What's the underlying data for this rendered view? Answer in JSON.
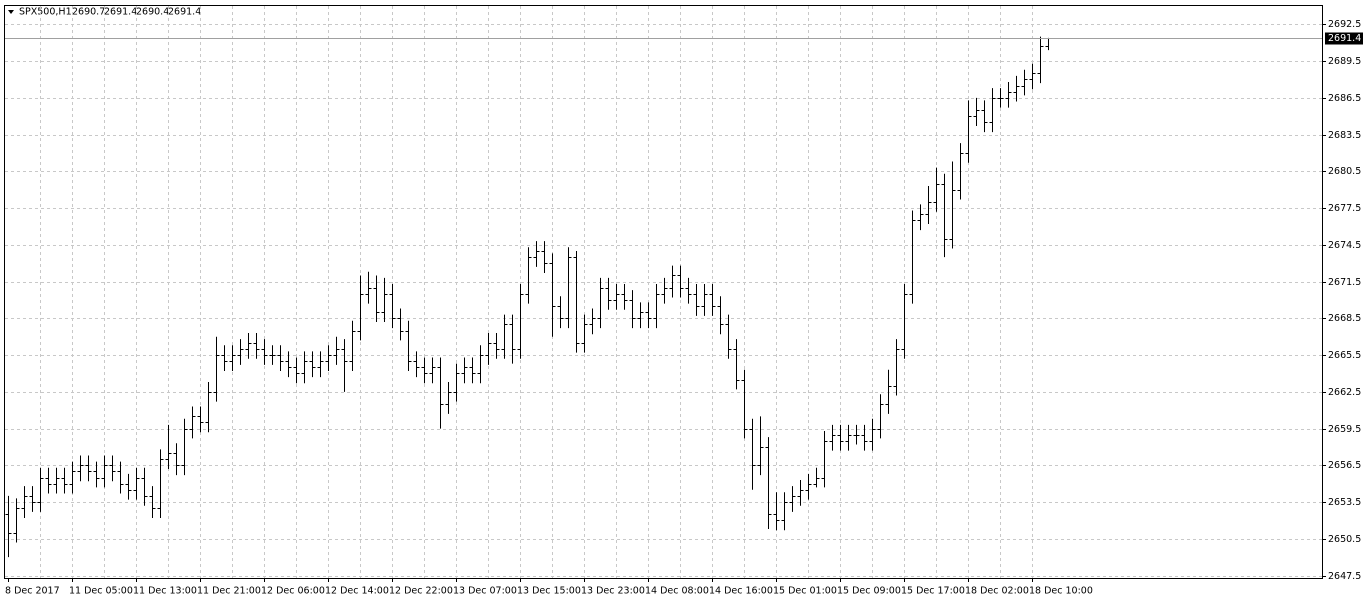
{
  "chart_data": {
    "type": "ohlc",
    "title": "SPX500,H1",
    "color": "#000000",
    "grid": true,
    "categories": [
      "8 Dec 2017",
      null,
      null,
      null,
      null,
      null,
      null,
      null,
      "11 Dec 05:00",
      null,
      null,
      null,
      null,
      null,
      null,
      null,
      "11 Dec 13:00",
      null,
      null,
      null,
      null,
      null,
      null,
      null,
      "11 Dec 21:00",
      null,
      null,
      null,
      null,
      null,
      null,
      null,
      "12 Dec 06:00",
      null,
      null,
      null,
      null,
      null,
      null,
      null,
      "12 Dec 14:00",
      null,
      null,
      null,
      null,
      null,
      null,
      null,
      "12 Dec 22:00",
      null,
      null,
      null,
      null,
      null,
      null,
      null,
      "13 Dec 07:00",
      null,
      null,
      null,
      null,
      null,
      null,
      null,
      "13 Dec 15:00",
      null,
      null,
      null,
      null,
      null,
      null,
      null,
      "13 Dec 23:00",
      null,
      null,
      null,
      null,
      null,
      null,
      null,
      "14 Dec 08:00",
      null,
      null,
      null,
      null,
      null,
      null,
      null,
      "14 Dec 16:00",
      null,
      null,
      null,
      null,
      null,
      null,
      null,
      "15 Dec 01:00",
      null,
      null,
      null,
      null,
      null,
      null,
      null,
      "15 Dec 09:00",
      null,
      null,
      null,
      null,
      null,
      null,
      null,
      "15 Dec 17:00",
      null,
      null,
      null,
      null,
      null,
      null,
      null,
      "18 Dec 02:00",
      null,
      null,
      null,
      null,
      null,
      null,
      null,
      "18 Dec 10:00",
      null,
      null
    ],
    "open": [
      2652.5,
      2651.0,
      2653.0,
      2654.0,
      2653.5,
      2655.5,
      2655.0,
      2655.5,
      2655.0,
      2656.0,
      2656.5,
      2656.0,
      2655.5,
      2656.5,
      2656.0,
      2655.0,
      2654.5,
      2655.5,
      2654.0,
      2653.0,
      2657.0,
      2657.5,
      2656.5,
      2659.5,
      2660.5,
      2660.0,
      2662.5,
      2665.5,
      2665.0,
      2665.5,
      2666.0,
      2666.5,
      2666.0,
      2665.5,
      2665.5,
      2665.0,
      2664.5,
      2664.0,
      2665.0,
      2664.5,
      2665.0,
      2665.5,
      2666.0,
      2665.0,
      2667.5,
      2670.5,
      2671.0,
      2669.0,
      2670.5,
      2668.5,
      2667.5,
      2665.0,
      2664.5,
      2664.0,
      2664.5,
      2661.5,
      2662.5,
      2664.0,
      2664.5,
      2664.0,
      2665.5,
      2666.5,
      2666.0,
      2668.0,
      2666.0,
      2670.5,
      2673.5,
      2674.0,
      2673.0,
      2669.5,
      2668.5,
      2673.5,
      2666.5,
      2668.0,
      2668.5,
      2671.0,
      2670.0,
      2670.5,
      2670.0,
      2668.5,
      2669.0,
      2668.5,
      2670.5,
      2671.0,
      2672.0,
      2671.0,
      2670.5,
      2669.5,
      2670.5,
      2669.5,
      2668.0,
      2666.0,
      2663.5,
      2659.5,
      2656.5,
      2658.0,
      2652.5,
      2652.0,
      2653.5,
      2654.0,
      2654.5,
      2655.0,
      2655.5,
      2658.5,
      2659.0,
      2658.5,
      2659.0,
      2659.0,
      2658.5,
      2659.5,
      2661.5,
      2663.0,
      2666.0,
      2670.5,
      2676.5,
      2677.0,
      2678.0,
      2679.5,
      2675.0,
      2679.0,
      2682.0,
      2685.0,
      2685.5,
      2684.5,
      2686.5,
      2686.5,
      2687.0,
      2687.5,
      2688.0,
      2688.5,
      2690.7
    ],
    "high": [
      2654.0,
      2653.8,
      2654.8,
      2654.8,
      2656.3,
      2656.3,
      2656.3,
      2656.3,
      2656.8,
      2657.3,
      2657.3,
      2656.8,
      2657.3,
      2657.3,
      2656.8,
      2655.8,
      2656.3,
      2656.3,
      2654.8,
      2657.8,
      2659.8,
      2658.3,
      2660.3,
      2661.3,
      2661.3,
      2663.3,
      2667.0,
      2666.3,
      2666.3,
      2666.8,
      2667.3,
      2667.3,
      2666.8,
      2666.3,
      2666.3,
      2665.8,
      2665.3,
      2665.8,
      2665.8,
      2665.8,
      2666.3,
      2667.0,
      2666.8,
      2668.3,
      2672.0,
      2672.3,
      2672.0,
      2671.8,
      2671.3,
      2669.3,
      2668.3,
      2665.8,
      2665.3,
      2665.3,
      2665.3,
      2663.3,
      2664.8,
      2665.3,
      2665.3,
      2666.3,
      2667.3,
      2667.3,
      2668.8,
      2668.8,
      2671.3,
      2674.3,
      2674.8,
      2674.8,
      2673.8,
      2670.3,
      2674.3,
      2674.0,
      2668.8,
      2669.3,
      2671.8,
      2671.8,
      2671.3,
      2671.3,
      2670.8,
      2669.8,
      2669.8,
      2671.3,
      2671.8,
      2672.8,
      2672.8,
      2671.8,
      2671.3,
      2671.3,
      2671.3,
      2670.3,
      2668.8,
      2666.8,
      2664.3,
      2660.3,
      2660.5,
      2658.8,
      2654.3,
      2654.3,
      2654.8,
      2655.3,
      2655.8,
      2656.3,
      2659.3,
      2659.8,
      2659.8,
      2659.8,
      2659.8,
      2659.8,
      2660.3,
      2662.3,
      2664.3,
      2666.8,
      2671.3,
      2677.3,
      2677.8,
      2679.3,
      2680.8,
      2680.3,
      2681.3,
      2682.8,
      2686.3,
      2686.5,
      2686.3,
      2687.3,
      2687.3,
      2687.8,
      2688.3,
      2688.8,
      2689.3,
      2691.5,
      2691.4
    ],
    "low": [
      2649.0,
      2650.2,
      2652.2,
      2652.7,
      2652.7,
      2654.2,
      2654.2,
      2654.2,
      2654.2,
      2655.2,
      2655.2,
      2654.7,
      2654.7,
      2655.2,
      2654.2,
      2653.7,
      2653.7,
      2653.2,
      2652.2,
      2652.2,
      2656.2,
      2655.7,
      2655.7,
      2658.7,
      2659.2,
      2659.2,
      2661.7,
      2664.2,
      2664.2,
      2664.7,
      2665.2,
      2665.2,
      2664.7,
      2664.7,
      2664.2,
      2663.7,
      2663.2,
      2663.2,
      2663.7,
      2663.7,
      2664.2,
      2664.7,
      2662.5,
      2664.2,
      2666.7,
      2669.7,
      2668.2,
      2668.2,
      2667.7,
      2666.7,
      2664.2,
      2663.7,
      2663.2,
      2663.2,
      2659.5,
      2660.7,
      2661.7,
      2663.2,
      2663.2,
      2663.2,
      2664.7,
      2665.2,
      2665.2,
      2664.8,
      2665.2,
      2669.7,
      2672.7,
      2672.2,
      2667.0,
      2667.7,
      2667.7,
      2665.7,
      2665.7,
      2667.2,
      2667.7,
      2669.2,
      2669.2,
      2669.2,
      2667.7,
      2667.7,
      2667.7,
      2667.7,
      2669.7,
      2670.2,
      2670.2,
      2669.7,
      2668.7,
      2668.7,
      2668.7,
      2667.2,
      2665.2,
      2662.7,
      2658.7,
      2654.5,
      2655.7,
      2651.3,
      2651.2,
      2651.2,
      2652.7,
      2653.2,
      2653.7,
      2654.7,
      2654.7,
      2657.7,
      2657.7,
      2657.7,
      2658.2,
      2657.7,
      2657.7,
      2658.7,
      2660.7,
      2662.2,
      2665.2,
      2669.7,
      2675.7,
      2676.2,
      2677.2,
      2673.5,
      2674.2,
      2678.2,
      2681.2,
      2684.2,
      2683.7,
      2683.7,
      2685.7,
      2685.7,
      2686.2,
      2686.7,
      2687.2,
      2687.7,
      2690.4
    ],
    "close": [
      2651.0,
      2653.0,
      2654.0,
      2653.5,
      2655.5,
      2655.0,
      2655.5,
      2655.0,
      2656.0,
      2656.5,
      2656.0,
      2655.5,
      2656.5,
      2656.0,
      2655.0,
      2654.5,
      2655.5,
      2654.0,
      2653.0,
      2657.0,
      2657.5,
      2656.5,
      2659.5,
      2660.5,
      2660.0,
      2662.5,
      2665.5,
      2665.0,
      2665.5,
      2666.0,
      2666.5,
      2666.0,
      2665.5,
      2665.5,
      2665.0,
      2664.5,
      2664.0,
      2665.0,
      2664.5,
      2665.0,
      2665.5,
      2666.0,
      2665.0,
      2667.5,
      2670.5,
      2671.0,
      2669.0,
      2670.5,
      2668.5,
      2667.5,
      2665.0,
      2664.5,
      2664.0,
      2664.5,
      2661.5,
      2662.5,
      2664.0,
      2664.5,
      2664.0,
      2665.5,
      2666.5,
      2666.0,
      2668.0,
      2666.0,
      2670.5,
      2673.5,
      2674.0,
      2673.0,
      2669.5,
      2668.5,
      2673.5,
      2666.5,
      2668.0,
      2668.5,
      2671.0,
      2670.0,
      2670.5,
      2670.0,
      2668.5,
      2669.0,
      2668.5,
      2670.5,
      2671.0,
      2672.0,
      2671.0,
      2670.5,
      2669.5,
      2670.5,
      2669.5,
      2668.0,
      2666.0,
      2663.5,
      2659.5,
      2656.5,
      2658.0,
      2652.5,
      2652.0,
      2653.5,
      2654.0,
      2654.5,
      2655.0,
      2655.5,
      2658.5,
      2659.0,
      2658.5,
      2659.0,
      2659.0,
      2658.5,
      2659.5,
      2661.5,
      2663.0,
      2666.0,
      2670.5,
      2676.5,
      2677.0,
      2678.0,
      2679.5,
      2675.0,
      2679.0,
      2682.0,
      2685.0,
      2685.5,
      2684.5,
      2686.5,
      2686.5,
      2687.0,
      2687.5,
      2688.0,
      2688.5,
      2690.7,
      2691.4
    ],
    "ylim": [
      2647.3,
      2694.0
    ],
    "yticks": [
      2647.5,
      2650.5,
      2653.5,
      2656.5,
      2659.5,
      2662.5,
      2665.5,
      2668.5,
      2671.5,
      2674.5,
      2677.5,
      2680.5,
      2683.5,
      2686.5,
      2689.5,
      2692.5
    ]
  }
}
